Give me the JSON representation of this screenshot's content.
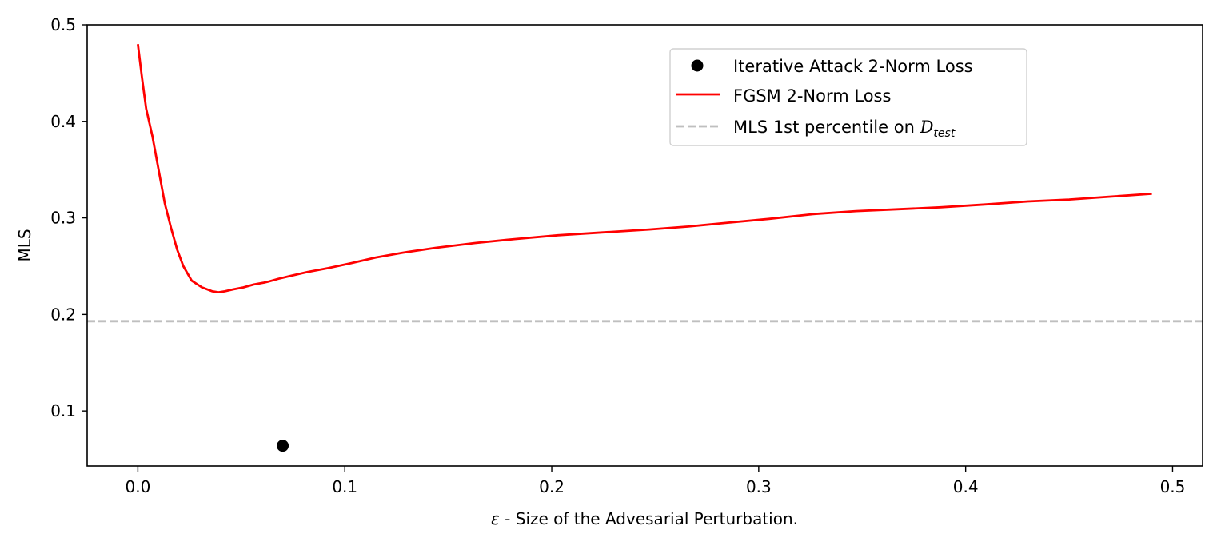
{
  "chart_data": {
    "type": "line",
    "title": "",
    "xlabel": {
      "symbol": "ε",
      "text": " - Size of the Advesarial Perturbation."
    },
    "ylabel": "MLS",
    "xlim": [
      -0.0245,
      0.5145
    ],
    "ylim": [
      0.043,
      0.5
    ],
    "xticks": [
      0.0,
      0.1,
      0.2,
      0.3,
      0.4,
      0.5
    ],
    "xtick_labels": [
      "0.0",
      "0.1",
      "0.2",
      "0.3",
      "0.4",
      "0.5"
    ],
    "yticks": [
      0.1,
      0.2,
      0.3,
      0.4,
      0.5
    ],
    "ytick_labels": [
      "0.1",
      "0.2",
      "0.3",
      "0.4",
      "0.5"
    ],
    "grid": false,
    "legend_position": "upper-right",
    "series": [
      {
        "name": "FGSM 2-Norm Loss",
        "kind": "line",
        "color": "#ff0000",
        "x": [
          0.0,
          0.002,
          0.004,
          0.007,
          0.01,
          0.013,
          0.016,
          0.019,
          0.022,
          0.026,
          0.031,
          0.036,
          0.039,
          0.042,
          0.046,
          0.051,
          0.056,
          0.061,
          0.063,
          0.068,
          0.074,
          0.082,
          0.092,
          0.103,
          0.115,
          0.128,
          0.144,
          0.163,
          0.182,
          0.203,
          0.225,
          0.247,
          0.266,
          0.285,
          0.305,
          0.327,
          0.347,
          0.368,
          0.388,
          0.41,
          0.43,
          0.45,
          0.47,
          0.49
        ],
        "y": [
          0.48,
          0.445,
          0.413,
          0.385,
          0.35,
          0.315,
          0.29,
          0.267,
          0.25,
          0.235,
          0.228,
          0.224,
          0.223,
          0.224,
          0.226,
          0.228,
          0.231,
          0.233,
          0.234,
          0.237,
          0.24,
          0.244,
          0.248,
          0.253,
          0.259,
          0.264,
          0.269,
          0.274,
          0.278,
          0.282,
          0.285,
          0.288,
          0.291,
          0.295,
          0.299,
          0.304,
          0.307,
          0.309,
          0.311,
          0.314,
          0.317,
          0.319,
          0.322,
          0.325
        ]
      },
      {
        "name": "Iterative Attack 2-Norm Loss",
        "kind": "scatter",
        "color": "#000000",
        "x": [
          0.07
        ],
        "y": [
          0.064
        ]
      },
      {
        "name": "MLS 1st percentile on ",
        "name_math": "D",
        "name_math_sub": "test",
        "kind": "hline",
        "color": "#bfbfbf",
        "y": 0.193
      }
    ]
  }
}
